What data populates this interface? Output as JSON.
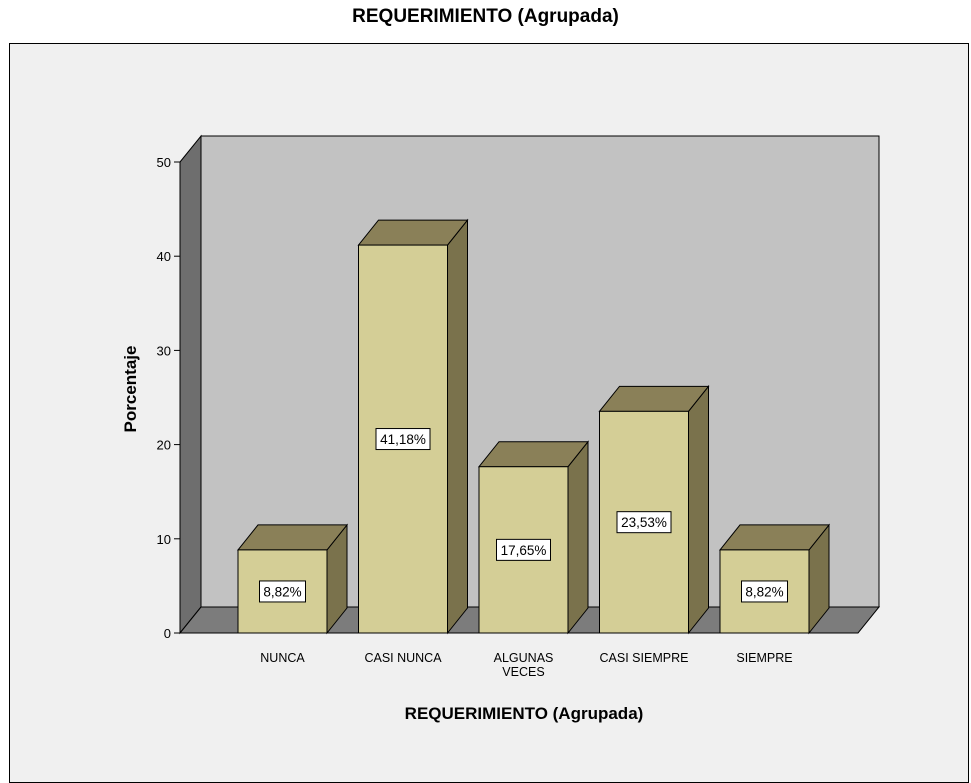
{
  "chart_data": {
    "type": "bar",
    "title": "REQUERIMIENTO (Agrupada)",
    "xlabel": "REQUERIMIENTO (Agrupada)",
    "ylabel": "Porcentaje",
    "categories": [
      [
        "NUNCA"
      ],
      [
        "CASI NUNCA"
      ],
      [
        "ALGUNAS",
        "VECES"
      ],
      [
        "CASI SIEMPRE"
      ],
      [
        "SIEMPRE"
      ]
    ],
    "values": [
      8.82,
      41.18,
      17.65,
      23.53,
      8.82
    ],
    "data_labels": [
      "8,82%",
      "41,18%",
      "17,65%",
      "23,53%",
      "8,82%"
    ],
    "yticks": [
      0,
      10,
      20,
      30,
      40,
      50
    ],
    "ylim": [
      0,
      50
    ],
    "grid": false,
    "legend": "none",
    "colors": {
      "bar_front": "#d4ce96",
      "bar_top": "#8a8058",
      "bar_side": "#7a724c",
      "wall_back": "#c2c2c2",
      "wall_side": "#6e6e6e",
      "floor": "#7c7c7c",
      "frame": "#f0f0f0"
    }
  }
}
